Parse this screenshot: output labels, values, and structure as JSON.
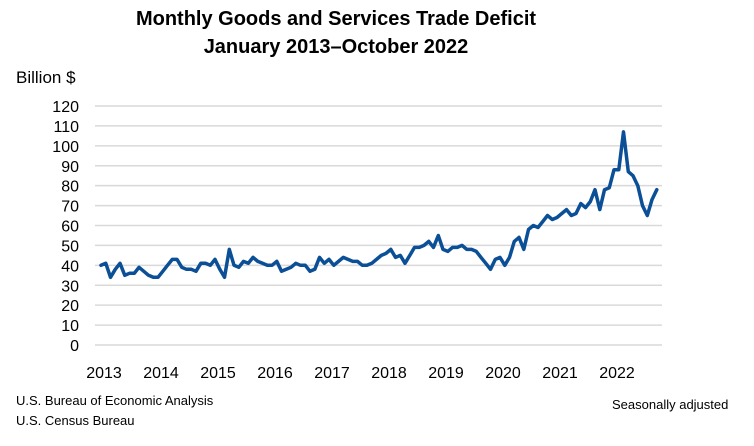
{
  "chart_data": {
    "type": "line",
    "title": "Monthly Goods and Services Trade Deficit",
    "subtitle": "January 2013–October 2022",
    "ylabel": "Billion $",
    "xlabel": "",
    "ylim": [
      0,
      120
    ],
    "yticks": [
      0,
      10,
      20,
      30,
      40,
      50,
      60,
      70,
      80,
      90,
      100,
      110,
      120
    ],
    "xticks": [
      "2013",
      "2014",
      "2015",
      "2016",
      "2017",
      "2018",
      "2019",
      "2020",
      "2021",
      "2022"
    ],
    "x_start": "2013-01",
    "x_end": "2022-10",
    "grid": true,
    "color": "#0b4f96",
    "series": [
      {
        "values": [
          40,
          41,
          34,
          38,
          41,
          35,
          36,
          36,
          39,
          37,
          35,
          34,
          34,
          37,
          40,
          43,
          43,
          39,
          38,
          38,
          37,
          41,
          41,
          40,
          43,
          38,
          34,
          48,
          40,
          39,
          42,
          41,
          44,
          42,
          41,
          40,
          40,
          42,
          37,
          38,
          39,
          41,
          40,
          40,
          37,
          38,
          44,
          41,
          43,
          40,
          42,
          44,
          43,
          42,
          42,
          40,
          40,
          41,
          43,
          45,
          46,
          48,
          44,
          45,
          41,
          45,
          49,
          49,
          50,
          52,
          49,
          55,
          48,
          47,
          49,
          49,
          50,
          48,
          48,
          47,
          44,
          41,
          38,
          43,
          44,
          40,
          44,
          52,
          54,
          48,
          58,
          60,
          59,
          62,
          65,
          63,
          64,
          66,
          68,
          65,
          66,
          71,
          69,
          72,
          78,
          68,
          78,
          79,
          88,
          88,
          107,
          87,
          85,
          80,
          70,
          65,
          73,
          78
        ]
      }
    ]
  },
  "footer": {
    "source_1": "U.S. Bureau of Economic Analysis",
    "source_2": "U.S. Census Bureau",
    "note": "Seasonally adjusted"
  }
}
